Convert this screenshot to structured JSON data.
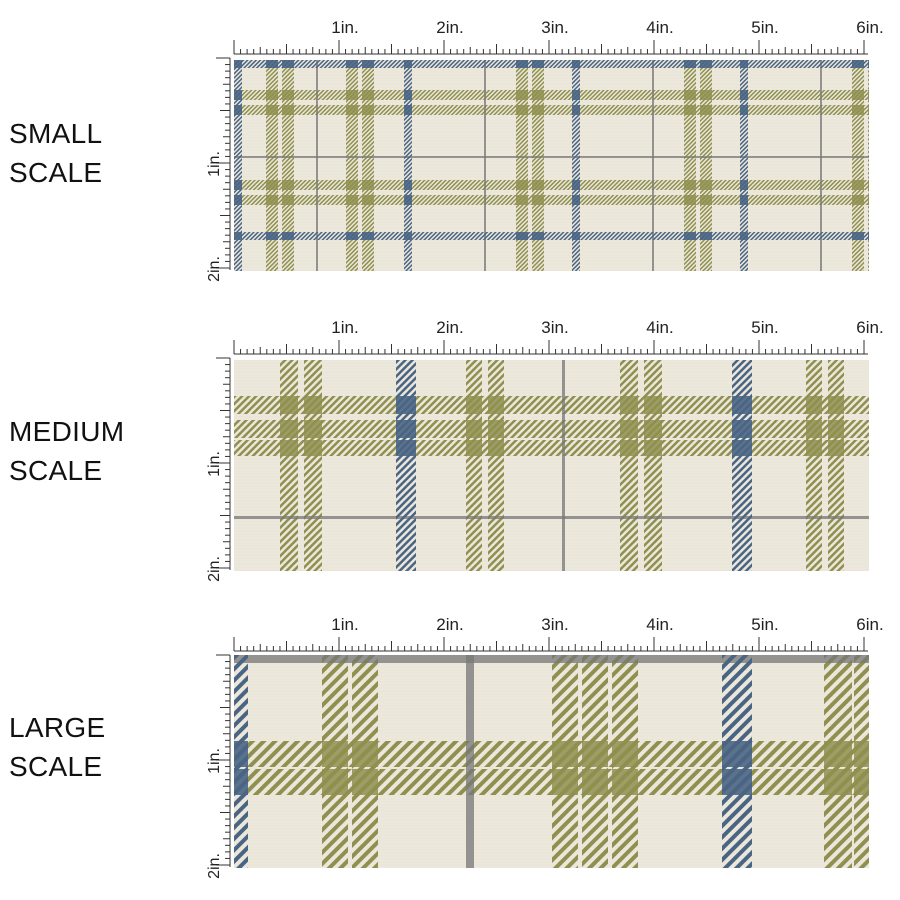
{
  "panels": [
    {
      "id": "small",
      "label_line1": "SMALL",
      "label_line2": "SCALE",
      "unit": "in."
    },
    {
      "id": "medium",
      "label_line1": "MEDIUM",
      "label_line2": "SCALE",
      "unit": "in."
    },
    {
      "id": "large",
      "label_line1": "LARGE",
      "label_line2": "SCALE",
      "unit": "in."
    }
  ],
  "ruler": {
    "horizontal_labels": [
      "1in.",
      "2in.",
      "3in.",
      "4in.",
      "5in.",
      "6in."
    ],
    "vertical_labels": [
      "1in.",
      "2in."
    ]
  },
  "colors": {
    "background": "#ece8dc",
    "olive": "#8f9050",
    "navy": "#4a6584",
    "gray": "#777777"
  }
}
